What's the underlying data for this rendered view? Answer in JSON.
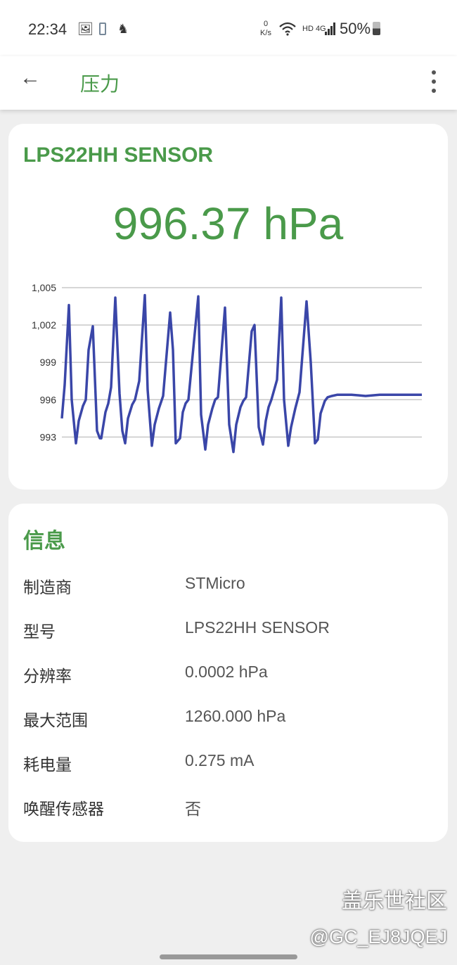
{
  "status_bar": {
    "time": "22:34",
    "speed_top": "0",
    "speed_unit": "K/s",
    "network": "HD 4G",
    "battery": "50%"
  },
  "app_bar": {
    "title": "压力"
  },
  "sensor_card": {
    "title": "LPS22HH  SENSOR",
    "value": "996.37 hPa"
  },
  "chart_data": {
    "type": "line",
    "title": "",
    "xlabel": "",
    "ylabel": "",
    "ylim": [
      991.5,
      1005
    ],
    "yticks": [
      1005,
      1002,
      999,
      996,
      993
    ],
    "ytick_labels": [
      "1,005",
      "1,002",
      "999",
      "996",
      "993"
    ],
    "xlim": [
      0,
      256
    ],
    "grid": "horizontal",
    "color": "#3a46a8",
    "x": [
      0,
      2,
      5,
      7,
      10,
      12,
      15,
      17,
      19,
      22,
      25,
      27,
      28,
      31,
      33,
      35,
      38,
      41,
      43,
      45,
      47,
      50,
      52,
      55,
      59,
      61,
      64,
      66,
      69,
      72,
      77,
      79,
      81,
      84,
      86,
      88,
      90,
      97,
      99,
      102,
      104,
      107,
      109,
      111,
      116,
      119,
      122,
      124,
      127,
      129,
      131,
      135,
      137,
      140,
      143,
      145,
      147,
      149,
      153,
      156,
      158,
      161,
      163,
      166,
      169,
      174,
      177,
      180,
      182,
      184,
      187,
      189,
      192,
      196,
      206,
      216,
      226,
      236,
      246,
      256
    ],
    "y": [
      994.5,
      997.2,
      1003.6,
      996,
      992.5,
      994.3,
      995.5,
      996,
      1000,
      1001.9,
      993.5,
      992.9,
      992.9,
      995,
      995.7,
      997,
      1004.2,
      996.5,
      993.5,
      992.5,
      994.5,
      995.6,
      996,
      997.5,
      1004.4,
      996.8,
      992.3,
      994,
      995.3,
      996.3,
      1003,
      1000,
      992.5,
      992.9,
      995,
      995.7,
      996,
      1004.3,
      994.8,
      992,
      994,
      995.3,
      996,
      996.2,
      1003.4,
      994,
      991.8,
      994,
      995.4,
      995.9,
      996.2,
      1001.5,
      1002,
      993.8,
      992.4,
      994.3,
      995.4,
      996,
      997.6,
      1004.2,
      996,
      992.3,
      993.8,
      995.3,
      996.6,
      1003.9,
      999,
      992.5,
      992.8,
      994.9,
      995.9,
      996.2,
      996.3,
      996.4,
      996.4,
      996.3,
      996.4,
      996.4,
      996.4,
      996.4
    ]
  },
  "info_card": {
    "title": "信息",
    "rows": [
      {
        "label": "制造商",
        "value": "STMicro"
      },
      {
        "label": "型号",
        "value": "LPS22HH  SENSOR"
      },
      {
        "label": "分辨率",
        "value": "0.0002 hPa"
      },
      {
        "label": "最大范围",
        "value": "1260.000 hPa"
      },
      {
        "label": "耗电量",
        "value": "0.275 mA"
      },
      {
        "label": "唤醒传感器",
        "value": "否"
      }
    ]
  },
  "watermark": {
    "line1": "盖乐世社区",
    "line2": "@GC_EJ8JQEJ"
  }
}
